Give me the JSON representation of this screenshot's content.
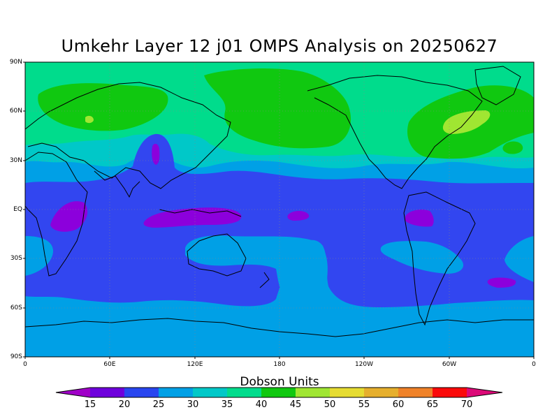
{
  "title": "Umkehr Layer 12 j01 OMPS Analysis on 20250627",
  "lat_labels": [
    "90N",
    "60N",
    "30N",
    "EQ",
    "30S",
    "60S",
    "90S"
  ],
  "lon_labels": [
    "0",
    "60E",
    "120E",
    "180",
    "120W",
    "60W",
    "0"
  ],
  "colorbar": {
    "title": "Dobson Units",
    "values": [
      "15",
      "20",
      "25",
      "30",
      "35",
      "40",
      "45",
      "50",
      "55",
      "60",
      "65",
      "70"
    ],
    "colors": [
      "#a000c8",
      "#6e00dc",
      "#2846f0",
      "#00a0e6",
      "#00c8c8",
      "#00dc8c",
      "#10c810",
      "#a0e632",
      "#e6dc32",
      "#e6af2d",
      "#f08228",
      "#fa0a0a",
      "#dc0a78"
    ]
  },
  "grid": "dotted",
  "colors": {
    "deep_band": "#3246f0",
    "mid_band": "#00a0e6",
    "teal": "#00c8c8",
    "seagreen": "#00dc8c",
    "green": "#10c810",
    "lime": "#a0e632",
    "purple": "#8c00dc",
    "magenta": "#dc0a78"
  }
}
